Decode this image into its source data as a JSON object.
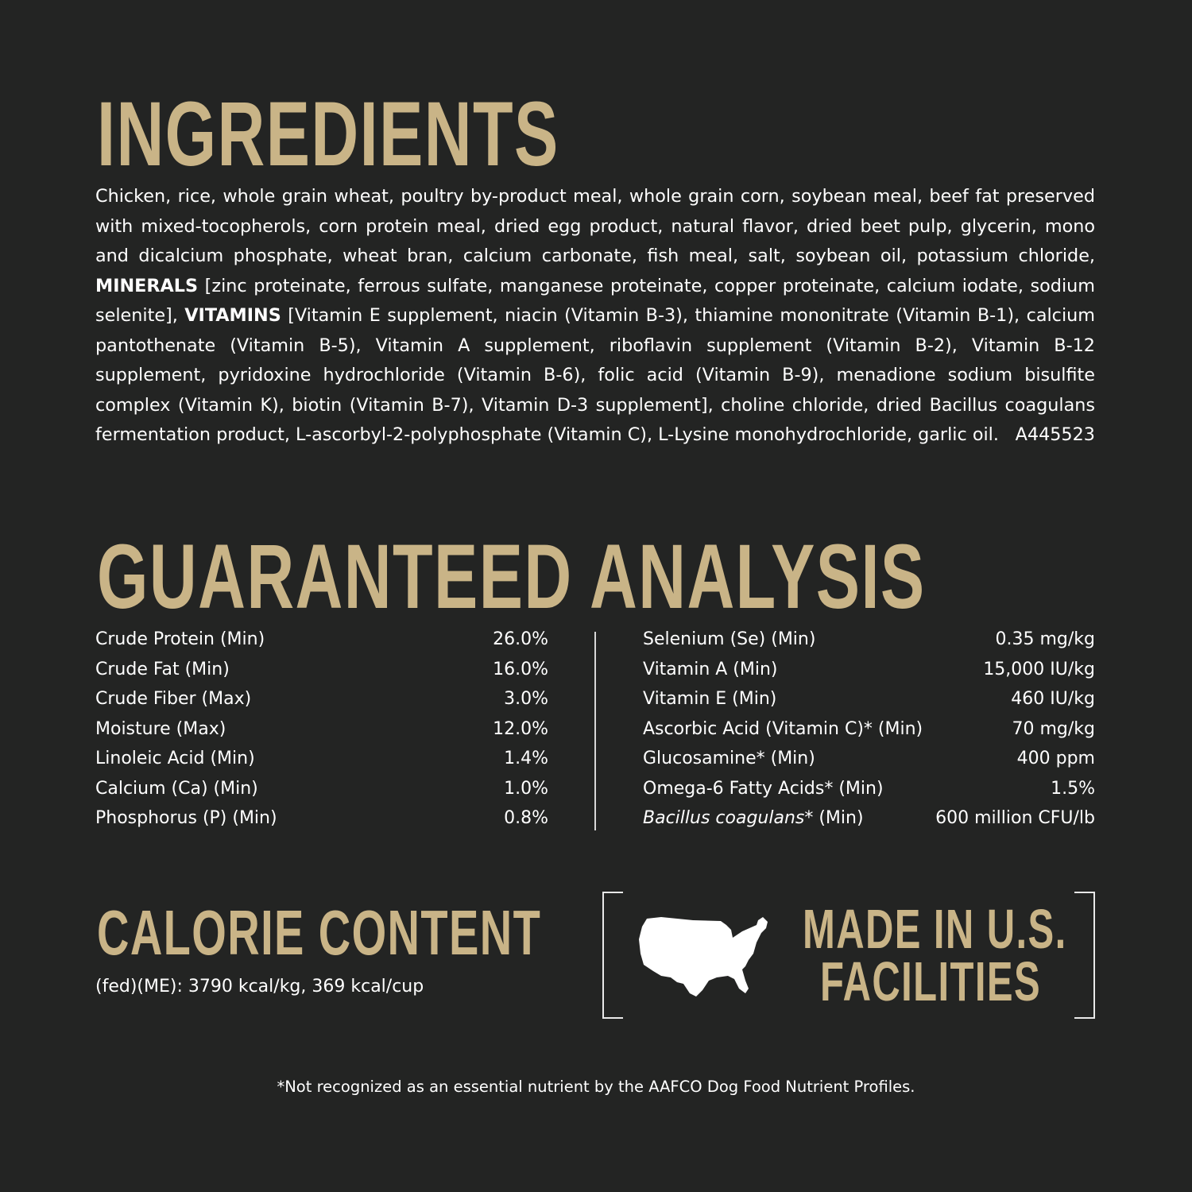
{
  "ingredients": {
    "title": "INGREDIENTS",
    "part1": "Chicken, rice, whole grain wheat, poultry by-product meal, whole grain corn, soybean meal, beef fat preserved with mixed-tocopherols, corn protein meal, dried egg product, natural flavor, dried beet pulp, glycerin, mono and dicalcium phosphate, wheat bran, calcium carbonate, fish meal, salt, soybean oil, potassium chloride, ",
    "minerals_label": "MINERALS",
    "part2": " [zinc proteinate, ferrous sulfate, manganese proteinate, copper proteinate, calcium iodate, sodium selenite], ",
    "vitamins_label": "VITAMINS",
    "part3": " [Vitamin E supplement, niacin (Vitamin B-3), thiamine mononitrate (Vitamin B-1), calcium pantothenate (Vitamin B-5), Vitamin A supplement, riboflavin supplement (Vitamin B-2), Vitamin B-12 supplement, pyridoxine hydrochloride (Vitamin B-6), folic acid (Vitamin B-9), menadione sodium bisulfite complex (Vitamin K), biotin (Vitamin B-7), Vitamin D-3 supplement], choline chloride, dried Bacillus coagulans fermentation product, L-ascorbyl-2-polyphosphate (Vitamin C), L-Lysine monohydrochloride, garlic oil.",
    "code": "A445523"
  },
  "analysis": {
    "title": "GUARANTEED ANALYSIS",
    "left": [
      {
        "label": "Crude Protein (Min)",
        "value": "26.0%"
      },
      {
        "label": "Crude Fat (Min)",
        "value": "16.0%"
      },
      {
        "label": "Crude Fiber (Max)",
        "value": "3.0%"
      },
      {
        "label": "Moisture (Max)",
        "value": "12.0%"
      },
      {
        "label": "Linoleic Acid (Min)",
        "value": "1.4%"
      },
      {
        "label": "Calcium (Ca) (Min)",
        "value": "1.0%"
      },
      {
        "label": "Phosphorus (P) (Min)",
        "value": "0.8%"
      }
    ],
    "right": [
      {
        "label": "Selenium (Se) (Min)",
        "value": "0.35 mg/kg"
      },
      {
        "label": "Vitamin A (Min)",
        "value": "15,000 IU/kg"
      },
      {
        "label": "Vitamin E (Min)",
        "value": "460 IU/kg"
      },
      {
        "label": "Ascorbic Acid (Vitamin C)* (Min)",
        "value": "70 mg/kg"
      },
      {
        "label": "Glucosamine* (Min)",
        "value": "400 ppm"
      },
      {
        "label": "Omega-6 Fatty Acids* (Min)",
        "value": "1.5%"
      }
    ],
    "last_right": {
      "label_italic": "Bacillus coagulans",
      "label_rest": "* (Min)",
      "value": "600 million CFU/lb"
    }
  },
  "calorie": {
    "title": "CALORIE CONTENT",
    "text": "(fed)(ME): 3790 kcal/kg, 369 kcal/cup"
  },
  "badge": {
    "icon": "usa-map-icon",
    "line1": "MADE IN U.S.",
    "line2": "FACILITIES"
  },
  "footnote": "*Not recognized as an essential nutrient by the AAFCO Dog Food Nutrient Profiles.",
  "colors": {
    "background": "#232423",
    "accent": "#c9b487",
    "text": "#ffffff"
  }
}
